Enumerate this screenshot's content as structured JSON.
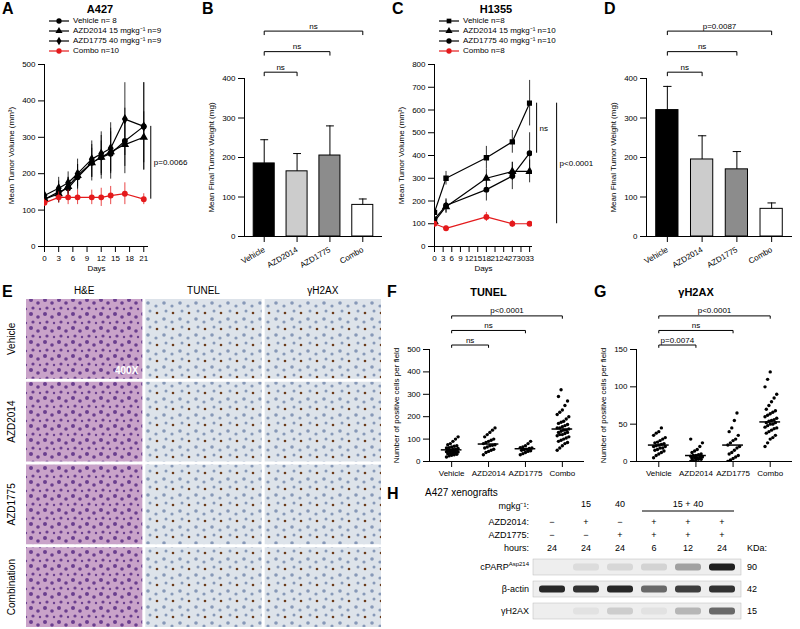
{
  "chart_data": [
    {
      "type": "line",
      "panel_label": "A",
      "title": "A427",
      "xlabel": "Days",
      "ylabel": "Mean Tumor Volume (mm³)",
      "x": [
        0,
        3,
        5,
        7,
        10,
        12,
        14,
        17,
        21
      ],
      "xlim": [
        0,
        22
      ],
      "xticks": [
        0,
        3,
        6,
        9,
        12,
        15,
        18,
        21
      ],
      "ylim": [
        0,
        500
      ],
      "yticks": [
        0,
        100,
        200,
        300,
        400,
        500
      ],
      "legend": "top-left",
      "series": [
        {
          "name": "Vehicle n= 8",
          "color": "#000000",
          "marker": "circle",
          "values": [
            130,
            150,
            160,
            190,
            230,
            245,
            255,
            290,
            330
          ],
          "errors": [
            15,
            30,
            30,
            35,
            50,
            60,
            70,
            90,
            120
          ]
        },
        {
          "name": "AZD2014 15 mgkg⁻¹ n=9",
          "color": "#000000",
          "marker": "triangle",
          "values": [
            130,
            145,
            165,
            195,
            230,
            245,
            260,
            280,
            300
          ],
          "errors": [
            15,
            25,
            25,
            30,
            40,
            45,
            55,
            60,
            70
          ]
        },
        {
          "name": "AZD1775 40 mgkg⁻¹ n=9",
          "color": "#000000",
          "marker": "diamond",
          "values": [
            140,
            160,
            175,
            200,
            240,
            255,
            270,
            350,
            330
          ],
          "errors": [
            15,
            30,
            30,
            40,
            50,
            60,
            70,
            100,
            120
          ]
        },
        {
          "name": "Combo n=10",
          "color": "#e41a1c",
          "marker": "circle",
          "values": [
            120,
            135,
            135,
            135,
            135,
            135,
            140,
            145,
            130
          ],
          "errors": [
            10,
            15,
            20,
            20,
            20,
            25,
            25,
            30,
            15
          ]
        }
      ],
      "annotations": [
        {
          "text": "p=0.0066",
          "from": "Vehicle n= 8",
          "to": "Combo n=10"
        }
      ]
    },
    {
      "type": "bar",
      "panel_label": "B",
      "ylabel": "Mean Final Tumor Weight (mg)",
      "categories": [
        "Vehicle",
        "AZD2014",
        "AZD1775",
        "Combo"
      ],
      "values": [
        185,
        165,
        205,
        80
      ],
      "errors": [
        60,
        45,
        75,
        15
      ],
      "colors": [
        "#000000",
        "#cccccc",
        "#8c8c8c",
        "#ffffff"
      ],
      "ylim": [
        0,
        400
      ],
      "yticks": [
        0,
        100,
        200,
        300,
        400
      ],
      "annotations": [
        {
          "text": "ns",
          "from": "Vehicle",
          "to": "AZD2014"
        },
        {
          "text": "ns",
          "from": "Vehicle",
          "to": "AZD1775"
        },
        {
          "text": "ns",
          "from": "Vehicle",
          "to": "Combo"
        }
      ]
    },
    {
      "type": "line",
      "panel_label": "C",
      "title": "H1355",
      "xlabel": "Days",
      "ylabel": "Mean Tumor Volume (mm³)",
      "x": [
        0,
        4,
        18,
        27,
        33
      ],
      "xlim": [
        0,
        34
      ],
      "xticks": [
        0,
        3,
        6,
        9,
        12,
        15,
        18,
        21,
        24,
        27,
        30,
        33
      ],
      "ylim": [
        0,
        800
      ],
      "yticks": [
        0,
        100,
        200,
        300,
        400,
        500,
        600,
        700,
        800
      ],
      "legend": "top-left",
      "series": [
        {
          "name": "Vehicle n=8",
          "color": "#000000",
          "marker": "square",
          "values": [
            150,
            300,
            390,
            460,
            630
          ],
          "errors": [
            20,
            30,
            50,
            50,
            100
          ]
        },
        {
          "name": "AZD2014 15 mgkg⁻¹ n=10",
          "color": "#000000",
          "marker": "triangle",
          "values": [
            110,
            175,
            300,
            330,
            330
          ],
          "errors": [
            15,
            30,
            40,
            40,
            50
          ]
        },
        {
          "name": "AZD1775 40 mgkg⁻¹ n=10",
          "color": "#000000",
          "marker": "circle",
          "values": [
            120,
            180,
            250,
            310,
            410
          ],
          "errors": [
            15,
            30,
            50,
            60,
            90
          ]
        },
        {
          "name": "Combo n=8",
          "color": "#e41a1c",
          "marker": "circle",
          "values": [
            100,
            80,
            130,
            100,
            100
          ],
          "errors": [
            10,
            10,
            20,
            15,
            10
          ]
        }
      ],
      "annotations": [
        {
          "text": "ns",
          "from": "Vehicle n=8",
          "to": "AZD1775 40 mgkg⁻¹ n=10"
        },
        {
          "text": "p<0.0001",
          "from": "Vehicle n=8",
          "to": "Combo n=8"
        }
      ]
    },
    {
      "type": "bar",
      "panel_label": "D",
      "ylabel": "Mean Final Tumor Weight (mg)",
      "categories": [
        "Vehicle",
        "AZD2014",
        "AZD1775",
        "Combo"
      ],
      "values": [
        320,
        195,
        170,
        70
      ],
      "errors": [
        60,
        60,
        45,
        15
      ],
      "colors": [
        "#000000",
        "#cccccc",
        "#8c8c8c",
        "#ffffff"
      ],
      "ylim": [
        0,
        400
      ],
      "yticks": [
        0,
        100,
        200,
        300,
        400
      ],
      "annotations": [
        {
          "text": "ns",
          "from": "Vehicle",
          "to": "AZD2014"
        },
        {
          "text": "ns",
          "from": "Vehicle",
          "to": "AZD1775"
        },
        {
          "text": "p=0.0087",
          "from": "Vehicle",
          "to": "Combo"
        }
      ]
    },
    {
      "type": "scatter",
      "panel_label": "F",
      "title": "TUNEL",
      "ylabel": "Number of positive cells per field",
      "categories": [
        "Vehicle",
        "AZD2014",
        "AZD1775",
        "Combo"
      ],
      "points": [
        [
          20,
          25,
          28,
          30,
          32,
          35,
          36,
          38,
          40,
          42,
          44,
          45,
          46,
          48,
          50,
          50,
          52,
          54,
          55,
          58,
          60,
          62,
          65,
          68,
          70,
          75,
          80,
          90,
          100,
          110
        ],
        [
          30,
          40,
          45,
          50,
          55,
          60,
          65,
          70,
          72,
          75,
          80,
          85,
          90,
          95,
          100,
          110,
          120,
          130,
          140,
          150
        ],
        [
          30,
          35,
          40,
          45,
          48,
          50,
          52,
          55,
          58,
          60,
          62,
          65,
          70,
          80,
          90
        ],
        [
          50,
          60,
          70,
          80,
          85,
          90,
          95,
          100,
          105,
          110,
          115,
          120,
          120,
          125,
          130,
          130,
          135,
          140,
          140,
          145,
          150,
          150,
          155,
          160,
          165,
          170,
          175,
          180,
          190,
          200,
          210,
          220,
          230,
          250,
          270,
          290,
          320
        ]
      ],
      "means": [
        52,
        78,
        57,
        145
      ],
      "ylim": [
        0,
        500
      ],
      "yticks": [
        0,
        100,
        200,
        300,
        400,
        500
      ],
      "annotations": [
        {
          "text": "ns",
          "from": "Vehicle",
          "to": "AZD2014"
        },
        {
          "text": "ns",
          "from": "Vehicle",
          "to": "AZD1775"
        },
        {
          "text": "p<0.0001",
          "from": "Vehicle",
          "to": "Combo"
        }
      ]
    },
    {
      "type": "scatter",
      "panel_label": "G",
      "title": "γH2AX",
      "ylabel": "Number of positive cells per field",
      "categories": [
        "Vehicle",
        "AZD2014",
        "AZD1775",
        "Combo"
      ],
      "points": [
        [
          5,
          8,
          10,
          12,
          14,
          15,
          16,
          18,
          18,
          20,
          20,
          21,
          22,
          23,
          24,
          25,
          26,
          28,
          30,
          32,
          35,
          38,
          40,
          45
        ],
        [
          0,
          1,
          2,
          3,
          3,
          4,
          5,
          5,
          6,
          6,
          7,
          8,
          8,
          9,
          10,
          12,
          14,
          16,
          20,
          25,
          30
        ],
        [
          0,
          2,
          4,
          6,
          8,
          10,
          12,
          15,
          18,
          20,
          22,
          25,
          28,
          30,
          35,
          40,
          45,
          55,
          65
        ],
        [
          20,
          25,
          30,
          32,
          35,
          38,
          40,
          42,
          44,
          45,
          46,
          48,
          50,
          50,
          52,
          52,
          54,
          55,
          56,
          58,
          60,
          62,
          64,
          66,
          68,
          70,
          75,
          80,
          85,
          90,
          100,
          110,
          120
        ]
      ],
      "means": [
        22,
        8,
        22,
        53
      ],
      "ylim": [
        0,
        150
      ],
      "yticks": [
        0,
        50,
        100,
        150
      ],
      "annotations": [
        {
          "text": "p=0.0074",
          "from": "Vehicle",
          "to": "AZD2014"
        },
        {
          "text": "ns",
          "from": "Vehicle",
          "to": "AZD1775"
        },
        {
          "text": "p<0.0001",
          "from": "Vehicle",
          "to": "Combo"
        }
      ]
    }
  ],
  "micrographs": {
    "panel_label": "E",
    "columns": [
      "H&E",
      "TUNEL",
      "γH2AX"
    ],
    "rows": [
      "Vehicle",
      "AZD2014",
      "AZD1775",
      "Combination"
    ],
    "magnification": "400X"
  },
  "western_blot": {
    "panel_label": "H",
    "title": "A427 xenografts",
    "row_labels": {
      "dose": "mgkg⁻¹:",
      "AZD2014": "AZD2014:",
      "AZD1775": "AZD1775:",
      "hours": "hours:"
    },
    "dose_groups": [
      {
        "label": "15",
        "lanes": [
          1
        ]
      },
      {
        "label": "40",
        "lanes": [
          2
        ]
      },
      {
        "label": "15 + 40",
        "lanes": [
          3,
          4,
          5
        ]
      }
    ],
    "AZD2014": [
      "−",
      "+",
      "−",
      "+",
      "+",
      "+"
    ],
    "AZD1775": [
      "−",
      "−",
      "+",
      "+",
      "+",
      "+"
    ],
    "hours": [
      24,
      24,
      24,
      6,
      12,
      24
    ],
    "mw_label": "KDa:",
    "bands": [
      {
        "name": "cPARP",
        "superscript": "Asp214",
        "kda": 90,
        "intensity": [
          0,
          0.08,
          0.1,
          0.12,
          0.35,
          0.95
        ]
      },
      {
        "name": "β-actin",
        "kda": 42,
        "intensity": [
          0.9,
          0.85,
          0.9,
          0.6,
          0.8,
          0.85
        ]
      },
      {
        "name": "γH2AX",
        "kda": 15,
        "intensity": [
          0,
          0.05,
          0.15,
          0.05,
          0.25,
          0.6
        ]
      }
    ]
  }
}
